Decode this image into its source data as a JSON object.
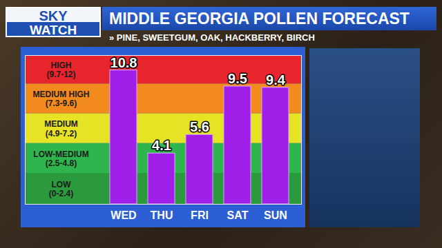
{
  "chart_data": {
    "type": "bar",
    "logo": [
      "SKY",
      "WATCH"
    ],
    "title": "MIDDLE GEORGIA POLLEN FORECAST",
    "subtitle": "» PINE, SWEETGUM, OAK, HACKBERRY, BIRCH",
    "categories": [
      "WED",
      "THU",
      "FRI",
      "SAT",
      "SUN"
    ],
    "values": [
      10.8,
      4.1,
      5.6,
      9.5,
      9.4
    ],
    "color": "#a01fe8",
    "ylim": [
      0,
      12
    ],
    "tick_labels": "x",
    "data_labels": true,
    "bands": [
      {
        "label": "HIGH",
        "range_label": "(9.7-12)",
        "from": 9.7,
        "to": 12,
        "color": "#e8242c"
      },
      {
        "label": "MEDIUM HIGH",
        "range_label": "(7.3-9.6)",
        "from": 7.3,
        "to": 9.7,
        "color": "#f28a1e"
      },
      {
        "label": "MEDIUM",
        "range_label": "(4.9-7.2)",
        "from": 4.9,
        "to": 7.3,
        "color": "#e6e224"
      },
      {
        "label": "LOW-MEDIUM",
        "range_label": "(2.5-4.8)",
        "from": 2.5,
        "to": 4.9,
        "color": "#2fb54e"
      },
      {
        "label": "LOW",
        "range_label": "(0-2.4)",
        "from": 0,
        "to": 2.5,
        "color": "#2a9a3c"
      }
    ]
  }
}
